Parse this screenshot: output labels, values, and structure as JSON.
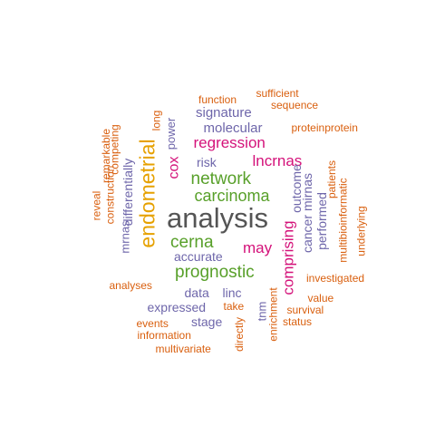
{
  "palette": {
    "gray": "#555555",
    "gold": "#E6A100",
    "green": "#58A02A",
    "magenta": "#D4127A",
    "purple": "#6E66AA",
    "orange": "#D95F0E"
  },
  "words": [
    {
      "id": "analysis",
      "text": "analysis",
      "color": "gray"
    },
    {
      "id": "endometrial",
      "text": "endometrial",
      "color": "gold"
    },
    {
      "id": "network",
      "text": "network",
      "color": "green"
    },
    {
      "id": "carcinoma",
      "text": "carcinoma",
      "color": "green"
    },
    {
      "id": "cerna",
      "text": "cerna",
      "color": "green"
    },
    {
      "id": "prognostic",
      "text": "prognostic",
      "color": "green"
    },
    {
      "id": "regression",
      "text": "regression",
      "color": "magenta"
    },
    {
      "id": "lncrnas",
      "text": "lncrnas",
      "color": "magenta"
    },
    {
      "id": "cox",
      "text": "cox",
      "color": "magenta"
    },
    {
      "id": "may",
      "text": "may",
      "color": "magenta"
    },
    {
      "id": "comprising",
      "text": "comprising",
      "color": "magenta"
    },
    {
      "id": "signature",
      "text": "signature",
      "color": "purple"
    },
    {
      "id": "molecular",
      "text": "molecular",
      "color": "purple"
    },
    {
      "id": "risk",
      "text": "risk",
      "color": "purple"
    },
    {
      "id": "power",
      "text": "power",
      "color": "purple"
    },
    {
      "id": "accurate",
      "text": "accurate",
      "color": "purple"
    },
    {
      "id": "data",
      "text": "data",
      "color": "purple"
    },
    {
      "id": "linc",
      "text": "linc",
      "color": "purple"
    },
    {
      "id": "expressed",
      "text": "expressed",
      "color": "purple"
    },
    {
      "id": "stage",
      "text": "stage",
      "color": "purple"
    },
    {
      "id": "tnm",
      "text": "tnm",
      "color": "purple"
    },
    {
      "id": "outcome",
      "text": "outcome",
      "color": "purple"
    },
    {
      "id": "mirnas",
      "text": "mirnas",
      "color": "purple"
    },
    {
      "id": "cancer",
      "text": "cancer",
      "color": "purple"
    },
    {
      "id": "performed",
      "text": "performed",
      "color": "purple"
    },
    {
      "id": "mrnas",
      "text": "mrnas",
      "color": "purple"
    },
    {
      "id": "differentially",
      "text": "differentially",
      "color": "purple"
    },
    {
      "id": "function",
      "text": "function",
      "color": "orange"
    },
    {
      "id": "sufficient",
      "text": "sufficient",
      "color": "orange"
    },
    {
      "id": "sequence",
      "text": "sequence",
      "color": "orange"
    },
    {
      "id": "long",
      "text": "long",
      "color": "orange"
    },
    {
      "id": "proteinprotein",
      "text": "proteinprotein",
      "color": "orange"
    },
    {
      "id": "reveal",
      "text": "reveal",
      "color": "orange"
    },
    {
      "id": "remarkable",
      "text": "remarkable",
      "color": "orange"
    },
    {
      "id": "construction",
      "text": "construction",
      "color": "orange"
    },
    {
      "id": "competing",
      "text": "competing",
      "color": "orange"
    },
    {
      "id": "patients",
      "text": "patients",
      "color": "orange"
    },
    {
      "id": "multibioinformatic",
      "text": "multibioinformatic",
      "color": "orange"
    },
    {
      "id": "underlying",
      "text": "underlying",
      "color": "orange"
    },
    {
      "id": "investigated",
      "text": "investigated",
      "color": "orange"
    },
    {
      "id": "analyses",
      "text": "analyses",
      "color": "orange"
    },
    {
      "id": "value",
      "text": "value",
      "color": "orange"
    },
    {
      "id": "take",
      "text": "take",
      "color": "orange"
    },
    {
      "id": "enrichment",
      "text": "enrichment",
      "color": "orange"
    },
    {
      "id": "survival",
      "text": "survival",
      "color": "orange"
    },
    {
      "id": "status",
      "text": "status",
      "color": "orange"
    },
    {
      "id": "events",
      "text": "events",
      "color": "orange"
    },
    {
      "id": "information",
      "text": "information",
      "color": "orange"
    },
    {
      "id": "multivariate",
      "text": "multivariate",
      "color": "orange"
    },
    {
      "id": "directly",
      "text": "directly",
      "color": "orange"
    }
  ]
}
